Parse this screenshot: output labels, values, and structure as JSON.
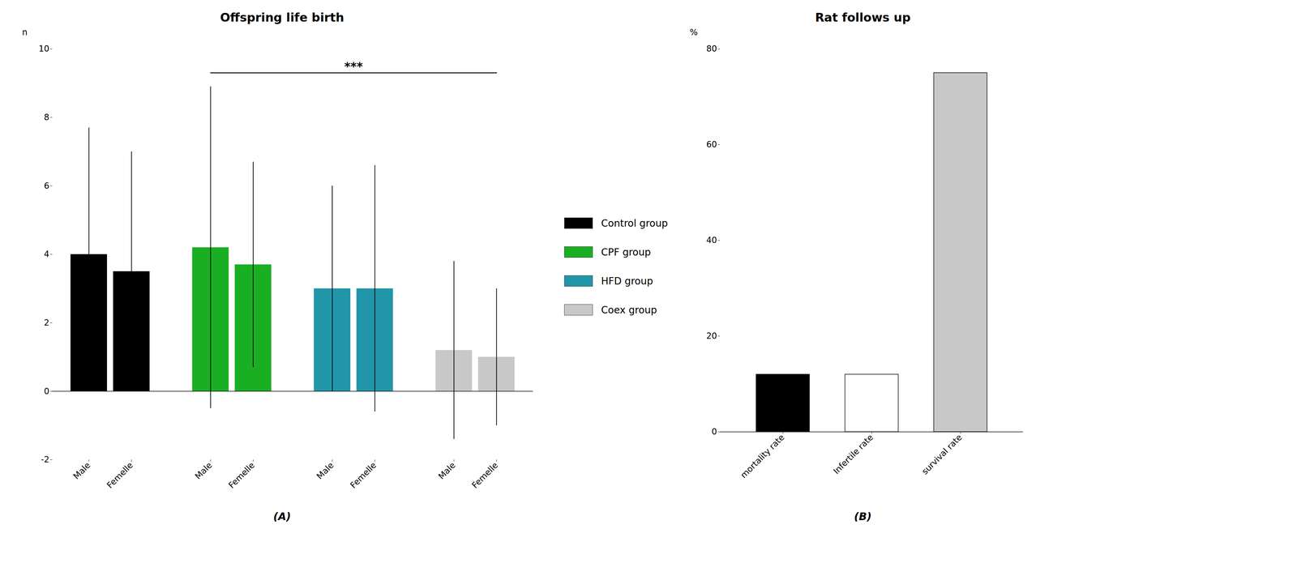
{
  "chart_data": [
    {
      "type": "bar",
      "title": "Offspring life birth",
      "ylabel": "n",
      "caption": "(A)",
      "categories": [
        "Male",
        "Femelle"
      ],
      "series": [
        {
          "name": "Control group",
          "color": "#000000",
          "values": [
            4.0,
            3.5
          ],
          "errors": [
            3.7,
            3.5
          ]
        },
        {
          "name": "CPF group",
          "color": "#1aaf23",
          "values": [
            4.2,
            3.7
          ],
          "errors": [
            4.7,
            3.0
          ]
        },
        {
          "name": "HFD group",
          "color": "#2196a8",
          "values": [
            3.0,
            3.0
          ],
          "errors": [
            3.0,
            3.6
          ]
        },
        {
          "name": "Coex group",
          "color": "#c8c8c8",
          "values": [
            1.2,
            1.0
          ],
          "errors": [
            2.6,
            2.0
          ]
        }
      ],
      "ylim": [
        -2,
        10
      ],
      "yticks": [
        -2,
        0,
        2,
        4,
        6,
        8,
        10
      ],
      "grid": false,
      "legend": "right",
      "annotations": [
        {
          "text": "***",
          "y": 9.3,
          "from": {
            "series": "CPF group",
            "category": "Male"
          },
          "to": {
            "series": "Coex group",
            "category": "Femelle"
          }
        }
      ]
    },
    {
      "type": "bar",
      "title": "Rat follows up",
      "ylabel": "%",
      "caption": "(B)",
      "categories": [
        "mortality rate",
        "Infertile rate",
        "survival rate"
      ],
      "values": [
        12,
        12,
        75
      ],
      "colors": [
        "#000000",
        "#ffffff",
        "#c8c8c8"
      ],
      "ylim": [
        0,
        80
      ],
      "yticks": [
        0,
        20,
        40,
        60,
        80
      ],
      "grid": false
    }
  ]
}
